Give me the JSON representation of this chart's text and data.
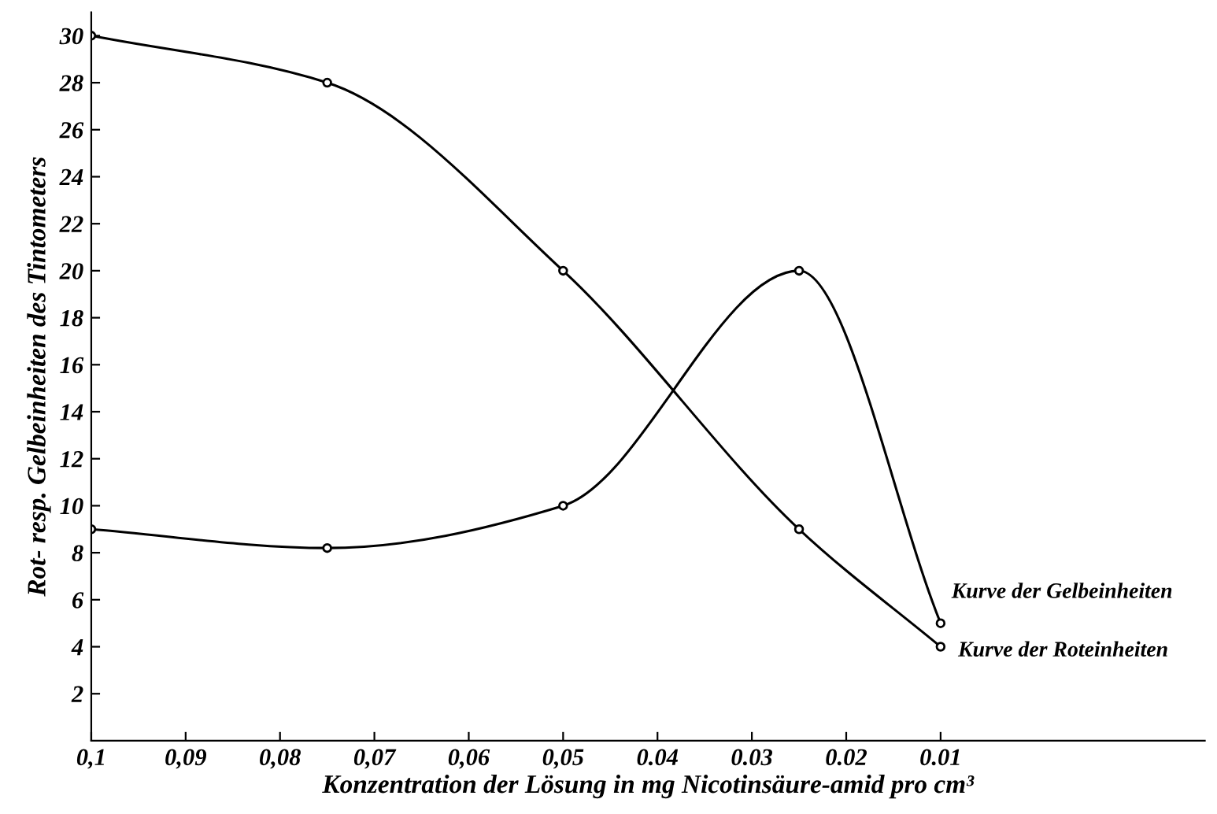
{
  "chart_data": {
    "type": "line",
    "xlabel": "Konzentration der Lösung in mg Nicotinsäure-amid pro cm³",
    "ylabel": "Rot- resp. Gelbeinheiten des Tintometers",
    "x": [
      0.1,
      0.075,
      0.05,
      0.025,
      0.01
    ],
    "series": [
      {
        "name": "Kurve der Roteinheiten",
        "color": "#000000",
        "values": [
          30,
          28,
          20,
          9,
          4
        ]
      },
      {
        "name": "Kurve der Gelbeinheiten",
        "color": "#000000",
        "values": [
          9,
          8.2,
          10,
          20,
          5
        ]
      }
    ],
    "xlim": [
      0.1,
      -0.018
    ],
    "xticks": [
      {
        "value": 0.1,
        "label": "0,1"
      },
      {
        "value": 0.09,
        "label": "0,09"
      },
      {
        "value": 0.08,
        "label": "0,08"
      },
      {
        "value": 0.07,
        "label": "0,07"
      },
      {
        "value": 0.06,
        "label": "0,06"
      },
      {
        "value": 0.05,
        "label": "0,05"
      },
      {
        "value": 0.04,
        "label": "0.04"
      },
      {
        "value": 0.03,
        "label": "0.03"
      },
      {
        "value": 0.02,
        "label": "0.02"
      },
      {
        "value": 0.01,
        "label": "0.01"
      }
    ],
    "ylim": [
      0,
      31
    ],
    "yticks": [
      2,
      4,
      6,
      8,
      10,
      12,
      14,
      16,
      18,
      20,
      22,
      24,
      26,
      28,
      30
    ],
    "grid": false,
    "legend": false,
    "marker": "circle",
    "line_style": "solid"
  }
}
